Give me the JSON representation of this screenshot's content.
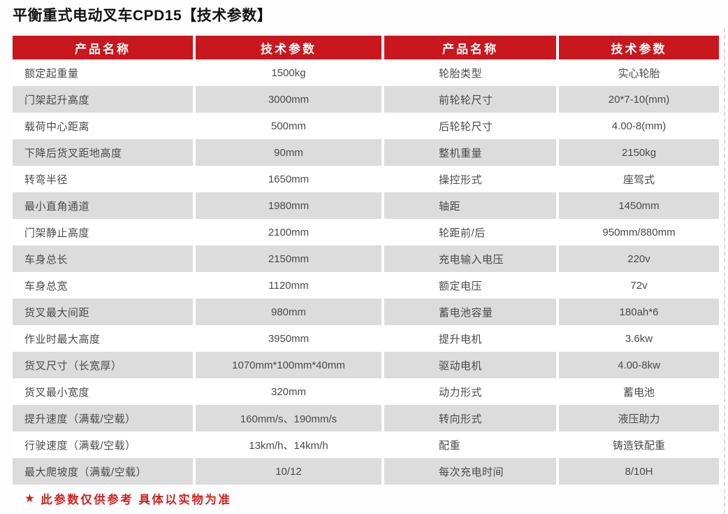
{
  "page": {
    "title": "平衡重式电动叉车CPD15【技术参数】"
  },
  "footnote": {
    "icon": "★",
    "text": "此参数仅供参考 具体以实物为准"
  },
  "colors": {
    "header_bg": "#c9171e",
    "row_alt_bg": "#dcdcdc",
    "body_text": "#4a4a4a",
    "footnote_text": "#cf2121",
    "title_text": "#111111"
  },
  "table": {
    "headers": [
      "产品名称",
      "技术参数",
      "产品名称",
      "技术参数"
    ],
    "rows": [
      {
        "left_name": "额定起重量",
        "left_value": "1500kg",
        "right_name": "轮胎类型",
        "right_value": "实心轮胎"
      },
      {
        "left_name": "门架起升高度",
        "left_value": "3000mm",
        "right_name": "前轮轮尺寸",
        "right_value": "20*7-10(mm)"
      },
      {
        "left_name": "载荷中心距离",
        "left_value": "500mm",
        "right_name": "后轮轮尺寸",
        "right_value": "4.00-8(mm)"
      },
      {
        "left_name": "下降后货叉距地高度",
        "left_value": "90mm",
        "right_name": "整机重量",
        "right_value": "2150kg"
      },
      {
        "left_name": "转弯半径",
        "left_value": "1650mm",
        "right_name": "操控形式",
        "right_value": "座驾式"
      },
      {
        "left_name": "最小直角通道",
        "left_value": "1980mm",
        "right_name": "轴距",
        "right_value": "1450mm"
      },
      {
        "left_name": "门架静止高度",
        "left_value": "2100mm",
        "right_name": "轮距前/后",
        "right_value": "950mm/880mm"
      },
      {
        "left_name": "车身总长",
        "left_value": "2150mm",
        "right_name": "充电输入电压",
        "right_value": "220v"
      },
      {
        "left_name": "车身总宽",
        "left_value": "1120mm",
        "right_name": "额定电压",
        "right_value": "72v"
      },
      {
        "left_name": "货叉最大间距",
        "left_value": "980mm",
        "right_name": "蓄电池容量",
        "right_value": "180ah*6"
      },
      {
        "left_name": "作业时最大高度",
        "left_value": "3950mm",
        "right_name": "提升电机",
        "right_value": "3.6kw"
      },
      {
        "left_name": "货叉尺寸（长宽厚）",
        "left_value": "1070mm*100mm*40mm",
        "right_name": "驱动电机",
        "right_value": "4.00-8kw"
      },
      {
        "left_name": "货叉最小宽度",
        "left_value": "320mm",
        "right_name": "动力形式",
        "right_value": "蓄电池"
      },
      {
        "left_name": "提升速度（满载/空载）",
        "left_value": "160mm/s、190mm/s",
        "right_name": "转向形式",
        "right_value": "液压助力"
      },
      {
        "left_name": "行驶速度（满载/空载）",
        "left_value": "13km/h、14km/h",
        "right_name": "配重",
        "right_value": "铸造铁配重"
      },
      {
        "left_name": "最大爬坡度（满载/空载）",
        "left_value": "10/12",
        "right_name": "每次充电时间",
        "right_value": "8/10H"
      }
    ]
  }
}
